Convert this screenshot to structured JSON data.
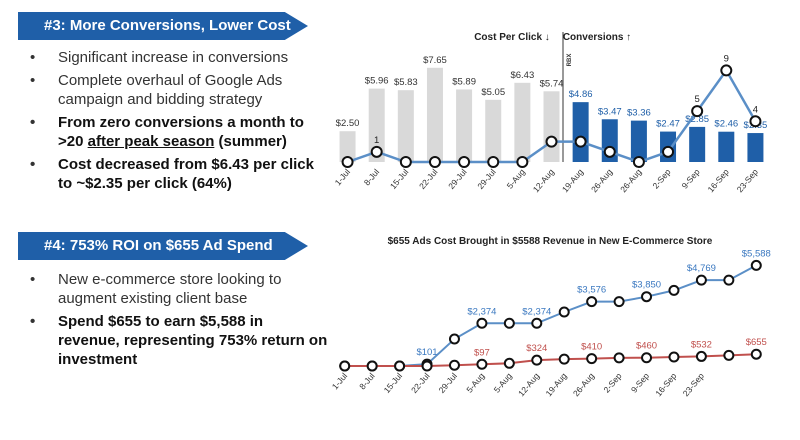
{
  "sections": [
    {
      "heading": "#3: More Conversions, Lower Cost",
      "bullets": [
        {
          "bold": false,
          "parts": [
            {
              "text": "Significant increase in conversions"
            }
          ]
        },
        {
          "bold": false,
          "parts": [
            {
              "text": "Complete overhaul of Google Ads campaign and bidding strategy"
            }
          ]
        },
        {
          "bold": true,
          "parts": [
            {
              "text": "From zero conversions a month to >20 "
            },
            {
              "text": "after peak season",
              "underline": true
            },
            {
              "text": " (summer)"
            }
          ]
        },
        {
          "bold": true,
          "parts": [
            {
              "text": "Cost decreased from $6.43 per click to ~$2.35 per click (64%)"
            }
          ]
        }
      ]
    },
    {
      "heading": "#4: 753% ROI on $655 Ad Spend",
      "bullets": [
        {
          "bold": false,
          "parts": [
            {
              "text": "New e-commerce store looking to augment existing client base"
            }
          ]
        },
        {
          "bold": true,
          "parts": [
            {
              "text": "Spend $655 to earn $5,588 in revenue, representing 753% return on investment"
            }
          ]
        }
      ]
    }
  ],
  "chart_data": [
    {
      "type": "combo",
      "xlabel": "Cost Per Click ↓",
      "y2label": "Conversions ↑",
      "annotation": "RBX",
      "categories": [
        "1-Jul",
        "8-Jul",
        "15-Jul",
        "22-Jul",
        "29-Jul",
        "29-Jul",
        "5-Aug",
        "12-Aug",
        "19-Aug",
        "26-Aug",
        "26-Aug",
        "2-Sep",
        "9-Sep",
        "16-Sep",
        "23-Sep"
      ],
      "ylim": [
        0,
        9.5
      ],
      "y2lim": [
        0,
        11.5
      ],
      "series": [
        {
          "name": "Cost Per Click",
          "kind": "bar",
          "colors": [
            "#d9d9d9",
            "#d9d9d9",
            "#d9d9d9",
            "#d9d9d9",
            "#d9d9d9",
            "#d9d9d9",
            "#d9d9d9",
            "#d9d9d9",
            "#1f5fa8",
            "#1f5fa8",
            "#1f5fa8",
            "#1f5fa8",
            "#1f5fa8",
            "#1f5fa8",
            "#1f5fa8"
          ],
          "label_colors": [
            "#333333",
            "#333333",
            "#333333",
            "#333333",
            "#333333",
            "#333333",
            "#333333",
            "#333333",
            "#1f5fa8",
            "#1f5fa8",
            "#1f5fa8",
            "#1f5fa8",
            "#1f5fa8",
            "#1f5fa8",
            "#1f5fa8"
          ],
          "values": [
            2.5,
            5.96,
            5.83,
            7.65,
            5.89,
            5.05,
            6.43,
            5.74,
            4.86,
            3.47,
            3.36,
            2.47,
            2.85,
            2.46,
            2.35
          ],
          "value_labels": [
            "$2.50",
            "$5.96",
            "$5.83",
            "$7.65",
            "$5.89",
            "$5.05",
            "$6.43",
            "$5.74",
            "$4.86",
            "$3.47",
            "$3.36",
            "$2.47",
            "$2.85",
            "$2.46",
            "$2.35"
          ]
        },
        {
          "name": "Conversions",
          "kind": "line",
          "axis": "y2",
          "color": "#5b8fc7",
          "label_color": "#222222",
          "values": [
            0,
            1,
            0,
            0,
            0,
            0,
            0,
            2,
            2,
            1,
            0,
            1,
            5,
            9,
            4
          ],
          "value_labels": [
            null,
            "1",
            null,
            null,
            null,
            null,
            null,
            null,
            null,
            null,
            null,
            null,
            "5",
            "9",
            "4"
          ]
        }
      ]
    },
    {
      "type": "line",
      "title": "$655 Ads Cost Brought in $5588 Revenue in New E-Commerce Store",
      "categories": [
        "1-Jul",
        "8-Jul",
        "15-Jul",
        "22-Jul",
        "29-Jul",
        "5-Aug",
        "5-Aug",
        "12-Aug",
        "19-Aug",
        "26-Aug",
        "2-Sep",
        "9-Sep",
        "16-Sep",
        "23-Sep",
        null,
        null
      ],
      "ylim": [
        0,
        6000
      ],
      "series": [
        {
          "name": "Revenue",
          "color": "#5b8fc7",
          "label_color": "#3a78c0",
          "values": [
            0,
            0,
            0,
            101,
            1500,
            2374,
            2374,
            2374,
            3000,
            3576,
            3576,
            3850,
            4200,
            4769,
            4769,
            5588
          ],
          "value_labels": [
            null,
            null,
            null,
            "$101",
            null,
            "$2,374",
            null,
            "$2,374",
            null,
            "$3,576",
            null,
            "$3,850",
            null,
            "$4,769",
            null,
            "$5,588"
          ]
        },
        {
          "name": "Ad Cost",
          "color": "#c0504d",
          "label_color": "#c0504d",
          "values": [
            0,
            0,
            0,
            0,
            40,
            97,
            150,
            324,
            380,
            410,
            450,
            460,
            500,
            532,
            590,
            655
          ],
          "value_labels": [
            null,
            null,
            null,
            null,
            null,
            "$97",
            null,
            "$324",
            null,
            "$410",
            null,
            "$460",
            null,
            "$532",
            null,
            "$655"
          ]
        }
      ]
    }
  ]
}
